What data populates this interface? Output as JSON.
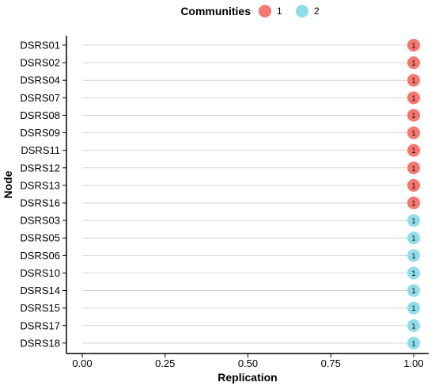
{
  "chart_data": {
    "type": "scatter",
    "title": "",
    "xlabel": "Replication",
    "ylabel": "Node",
    "xlim": [
      0,
      1
    ],
    "x_ticks": [
      "0.00",
      "0.25",
      "0.50",
      "0.75",
      "1.00"
    ],
    "x_tick_values": [
      0,
      0.25,
      0.5,
      0.75,
      1.0
    ],
    "legend": {
      "title": "Communities",
      "placement": "top",
      "entries": [
        {
          "label": "1",
          "color": "#F8766D"
        },
        {
          "label": "2",
          "color": "#8FDDEA"
        }
      ]
    },
    "grid": "horizontal",
    "point_label": "1",
    "points": [
      {
        "node": "DSRS01",
        "replication": 1.0,
        "community": "1"
      },
      {
        "node": "DSRS02",
        "replication": 1.0,
        "community": "1"
      },
      {
        "node": "DSRS04",
        "replication": 1.0,
        "community": "1"
      },
      {
        "node": "DSRS07",
        "replication": 1.0,
        "community": "1"
      },
      {
        "node": "DSRS08",
        "replication": 1.0,
        "community": "1"
      },
      {
        "node": "DSRS09",
        "replication": 1.0,
        "community": "1"
      },
      {
        "node": "DSRS11",
        "replication": 1.0,
        "community": "1"
      },
      {
        "node": "DSRS12",
        "replication": 1.0,
        "community": "1"
      },
      {
        "node": "DSRS13",
        "replication": 1.0,
        "community": "1"
      },
      {
        "node": "DSRS16",
        "replication": 1.0,
        "community": "1"
      },
      {
        "node": "DSRS03",
        "replication": 1.0,
        "community": "2"
      },
      {
        "node": "DSRS05",
        "replication": 1.0,
        "community": "2"
      },
      {
        "node": "DSRS06",
        "replication": 1.0,
        "community": "2"
      },
      {
        "node": "DSRS10",
        "replication": 1.0,
        "community": "2"
      },
      {
        "node": "DSRS14",
        "replication": 1.0,
        "community": "2"
      },
      {
        "node": "DSRS15",
        "replication": 1.0,
        "community": "2"
      },
      {
        "node": "DSRS17",
        "replication": 1.0,
        "community": "2"
      },
      {
        "node": "DSRS18",
        "replication": 1.0,
        "community": "2"
      }
    ]
  }
}
